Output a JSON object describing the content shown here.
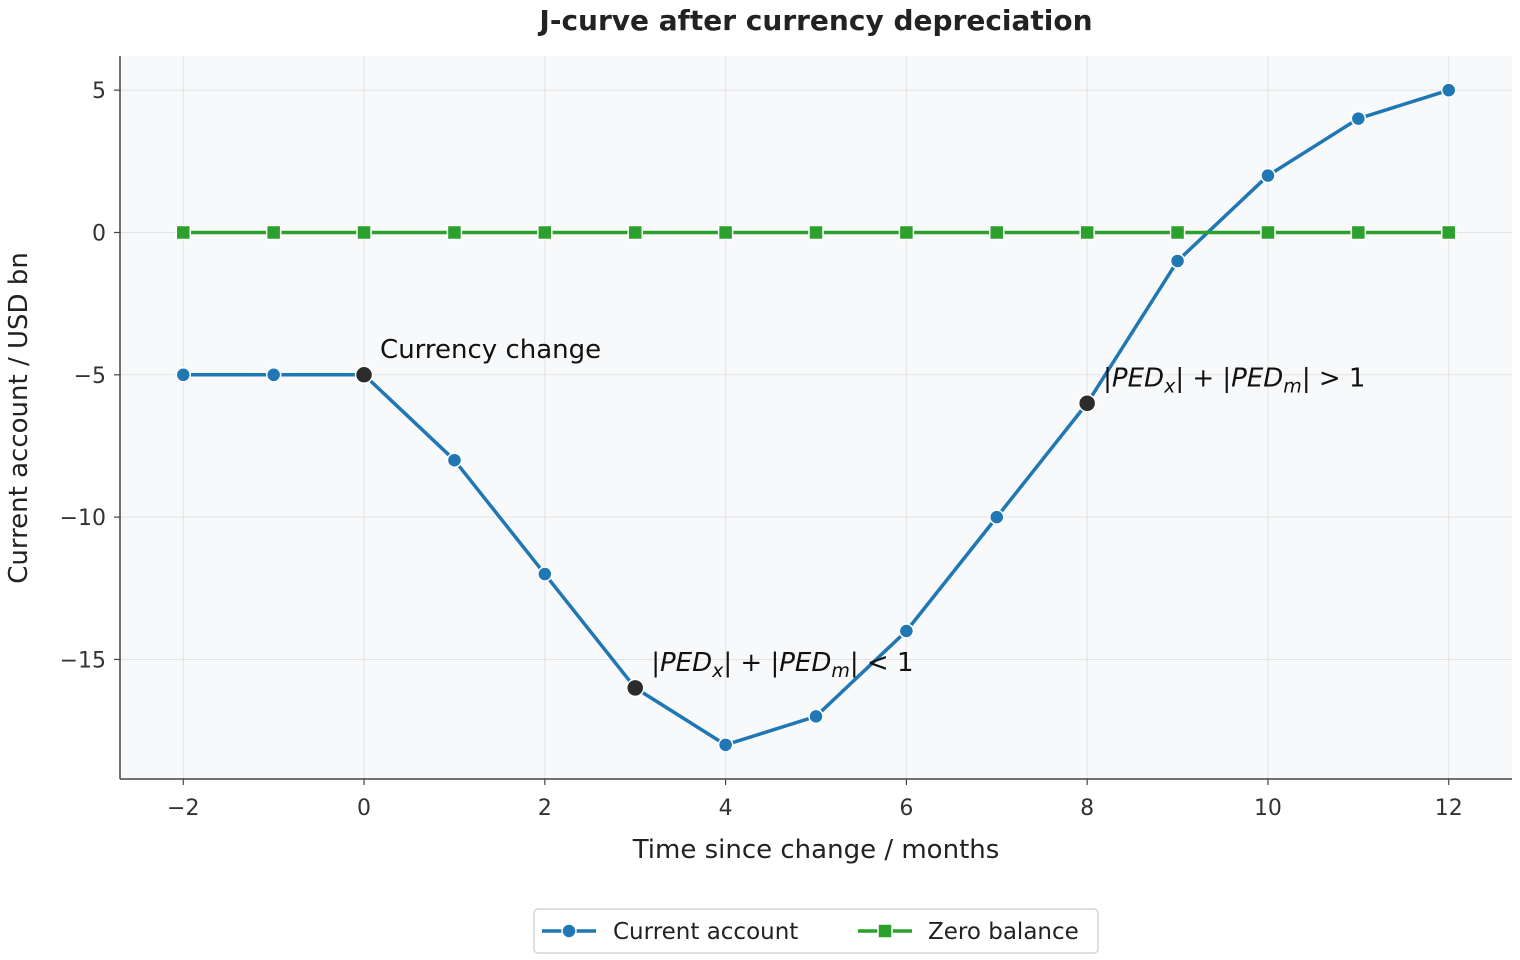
{
  "chart_data": {
    "type": "line",
    "title": "J-curve after currency depreciation",
    "xlabel": "Time since change / months",
    "ylabel": "Current account / USD bn",
    "xlim": [
      -2.7,
      12.7
    ],
    "ylim": [
      -19.2,
      6.2
    ],
    "xticks": [
      -2,
      0,
      2,
      4,
      6,
      8,
      10,
      12
    ],
    "yticks": [
      5,
      0,
      -5,
      -10,
      -15
    ],
    "x": [
      -2,
      -1,
      0,
      1,
      2,
      3,
      4,
      5,
      6,
      7,
      8,
      9,
      10,
      11,
      12
    ],
    "series": [
      {
        "name": "Current account",
        "color": "#1f77b4",
        "marker": "circle",
        "values": [
          -5,
          -5,
          -5,
          -8,
          -12,
          -16,
          -18,
          -17,
          -14,
          -10,
          -6,
          -1,
          2,
          4,
          5
        ]
      },
      {
        "name": "Zero balance",
        "color": "#2ca02c",
        "marker": "square",
        "values": [
          0,
          0,
          0,
          0,
          0,
          0,
          0,
          0,
          0,
          0,
          0,
          0,
          0,
          0,
          0
        ]
      }
    ],
    "highlight_points": [
      {
        "x": 0,
        "y": -5,
        "color": "#2b2b2b"
      },
      {
        "x": 3,
        "y": -16,
        "color": "#2b2b2b"
      },
      {
        "x": 8,
        "y": -6,
        "color": "#2b2b2b"
      }
    ],
    "annotations": [
      {
        "x": 0,
        "y": -5,
        "text": "Currency change"
      },
      {
        "x": 3,
        "y": -16,
        "text": "|PEDx| + |PEDm| < 1"
      },
      {
        "x": 8,
        "y": -6,
        "text": "|PEDx| + |PEDm| > 1"
      }
    ],
    "grid": true,
    "legend_position": "bottom-center",
    "minus_sign": "−"
  }
}
